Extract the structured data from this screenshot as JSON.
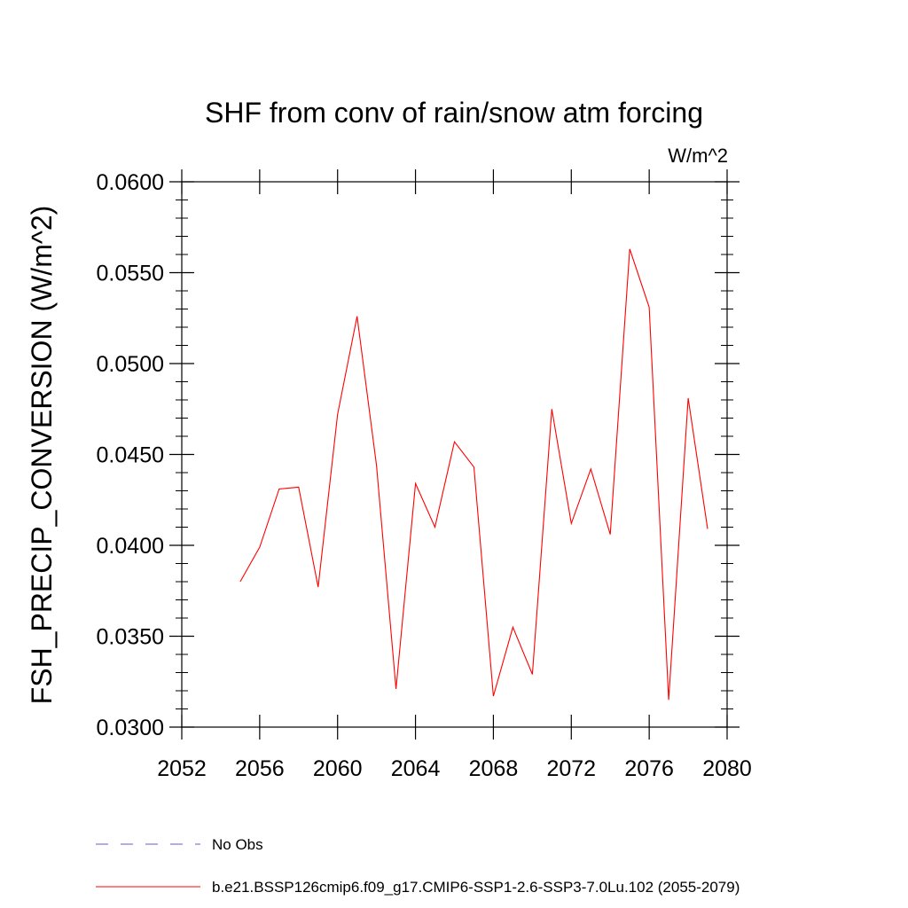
{
  "chart_data": {
    "type": "line",
    "title": "SHF from conv of rain/snow atm forcing",
    "units_label": "W/m^2",
    "xlabel": "",
    "ylabel": "FSH_PRECIP_CONVERSION  (W/m^2)",
    "xlim": [
      2052,
      2080
    ],
    "ylim": [
      0.03,
      0.06
    ],
    "x_ticks": [
      "2052",
      "2056",
      "2060",
      "2064",
      "2068",
      "2072",
      "2076",
      "2080"
    ],
    "y_ticks": [
      "0.0300",
      "0.0350",
      "0.0400",
      "0.0450",
      "0.0500",
      "0.0550",
      "0.0600"
    ],
    "grid": false,
    "legend_position": "bottom-left",
    "series": [
      {
        "name": "b.e21.BSSP126cmip6.f09_g17.CMIP6-SSP1-2.6-SSP3-7.0Lu.102 (2055-2079)",
        "color": "#ff0000",
        "style": "solid",
        "x": [
          2055,
          2056,
          2057,
          2058,
          2059,
          2060,
          2061,
          2062,
          2063,
          2064,
          2065,
          2066,
          2067,
          2068,
          2069,
          2070,
          2071,
          2072,
          2073,
          2074,
          2075,
          2076,
          2077,
          2078,
          2079
        ],
        "values": [
          0.038,
          0.0399,
          0.0431,
          0.0432,
          0.0377,
          0.0472,
          0.0526,
          0.0444,
          0.0321,
          0.0434,
          0.041,
          0.0457,
          0.0443,
          0.0317,
          0.0355,
          0.0329,
          0.0475,
          0.0412,
          0.0442,
          0.0406,
          0.0563,
          0.0531,
          0.0315,
          0.0481,
          0.0409
        ]
      }
    ],
    "legend_entries": [
      {
        "label": "No Obs",
        "color": "#6a5acd",
        "style": "dashed"
      },
      {
        "label": "b.e21.BSSP126cmip6.f09_g17.CMIP6-SSP1-2.6-SSP3-7.0Lu.102 (2055-2079)",
        "color": "#ff0000",
        "style": "solid"
      }
    ]
  }
}
